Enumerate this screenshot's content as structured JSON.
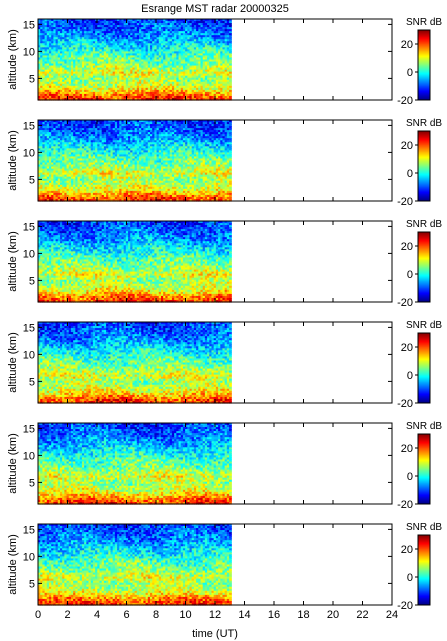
{
  "chart_data": {
    "type": "heatmap",
    "title": "Esrange MST radar 20000325",
    "xlabel": "time (UT)",
    "ylabel": "altitude (km)",
    "xlim": [
      0,
      24
    ],
    "ylim": [
      1,
      16
    ],
    "xticks": [
      "0",
      "2",
      "4",
      "6",
      "8",
      "10",
      "12",
      "14",
      "16",
      "18",
      "20",
      "22",
      "24"
    ],
    "yticks": [
      "5",
      "10",
      "15"
    ],
    "data_time_range": [
      0,
      13.1
    ],
    "colorbar": {
      "label": "SNR dB",
      "ticks": [
        "20",
        "0",
        "-20"
      ],
      "range": [
        -20,
        30
      ],
      "colormap": "jet"
    },
    "panel_count": 6,
    "snr_profile_db": {
      "altitude_km": [
        1,
        2,
        3,
        4,
        5,
        6,
        7,
        8,
        9,
        10,
        11,
        12,
        13,
        14,
        15,
        16
      ],
      "snr": [
        22,
        18,
        12,
        8,
        6,
        10,
        7,
        4,
        3,
        0,
        -2,
        -5,
        -7,
        -9,
        -10,
        -11
      ]
    }
  }
}
